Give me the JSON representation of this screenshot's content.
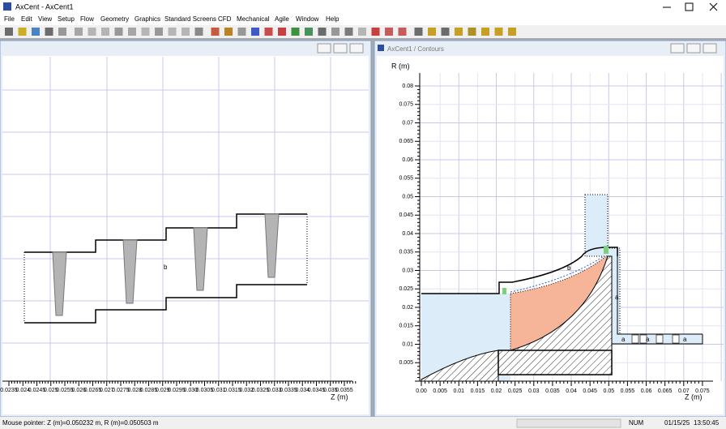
{
  "title_bar": {
    "title": "AxCent - AxCent1"
  },
  "menu": [
    "File",
    "Edit",
    "View",
    "Setup",
    "Flow",
    "Geometry",
    "Graphics",
    "Standard Screens",
    "CFD",
    "Mechanical",
    "Agile",
    "Window",
    "Help"
  ],
  "left_window": {
    "x_ticks": [
      "0.0235",
      "0.024",
      "0.0245",
      "0.025",
      "0.0255",
      "0.026",
      "0.0265",
      "0.027",
      "0.0275",
      "0.028",
      "0.0285",
      "0.029",
      "0.0295",
      "0.030",
      "0.0305",
      "0.031",
      "0.0315",
      "0.032",
      "0.0325",
      "0.033",
      "0.0335",
      "0.034",
      "0.0345",
      "0.035",
      "0.0355"
    ],
    "x_axis_label": "Z (m)",
    "labels": [
      "b"
    ]
  },
  "right_window": {
    "title": "AxCent1 / Contours",
    "y_axis_label": "R (m)",
    "y_ticks": [
      "0.005",
      "0.01",
      "0.015",
      "0.02",
      "0.025",
      "0.03",
      "0.035",
      "0.04",
      "0.045",
      "0.05",
      "0.055",
      "0.06",
      "0.065",
      "0.07",
      "0.075",
      "0.08"
    ],
    "x_ticks": [
      "0.00",
      "0.005",
      "0.01",
      "0.015",
      "0.02",
      "0.025",
      "0.03",
      "0.035",
      "0.04",
      "0.045",
      "0.05",
      "0.055",
      "0.06",
      "0.065",
      "0.07",
      "0.075"
    ],
    "x_axis_label": "Z (m)",
    "labels": [
      "b",
      "a",
      "a",
      "a",
      "a"
    ]
  },
  "status_bar": {
    "message": "Mouse pointer: Z (m)=0.050232 m, R (m)=0.050503 m",
    "num": "NUM",
    "date": "01/15/25",
    "time": "13:50:45"
  }
}
